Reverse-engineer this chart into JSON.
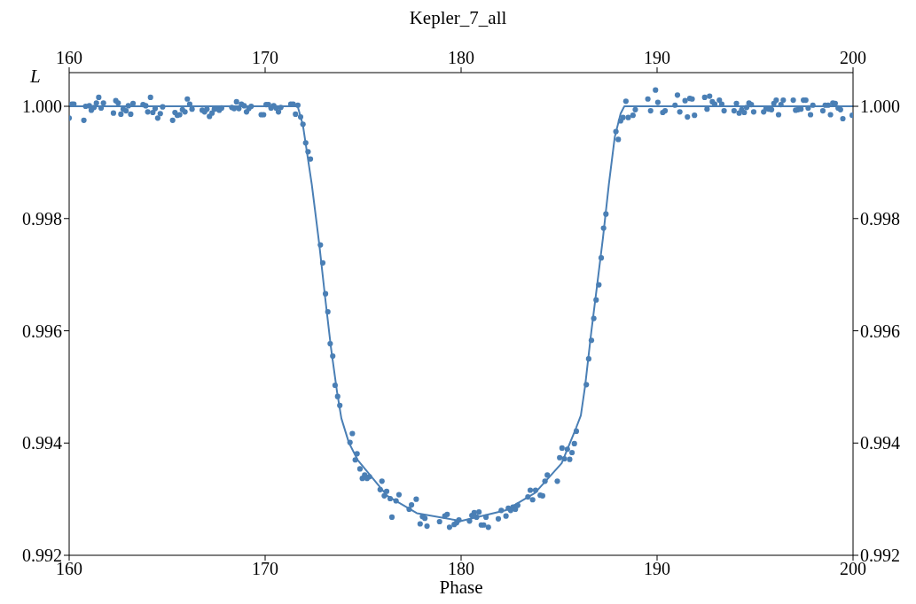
{
  "chart_data": {
    "type": "scatter",
    "title": "Kepler_7_all",
    "xlabel": "Phase",
    "ylabel": "L",
    "xlim": [
      160,
      200
    ],
    "xticks": [
      160,
      170,
      180,
      190,
      200
    ],
    "x2lim": [
      160,
      200
    ],
    "x2ticks": [
      160,
      170,
      180,
      190,
      200
    ],
    "ylim": [
      0.992,
      1.0006
    ],
    "yticks": [
      0.992,
      0.994,
      0.996,
      0.998,
      {
        "value": 1,
        "label": "1.000"
      }
    ],
    "y2lim": [
      0.992,
      1.0006
    ],
    "y2ticks": [
      0.992,
      0.994,
      0.996,
      0.998,
      {
        "value": 1,
        "label": "1.000"
      }
    ],
    "marker": "circle",
    "legend": false,
    "series": [
      {
        "type": "scatter",
        "color": "#4a7fb5",
        "x": [
          160.0,
          160.14,
          160.24,
          160.75,
          160.84,
          161.03,
          161.13,
          161.27,
          161.39,
          161.51,
          161.63,
          161.75,
          162.26,
          162.38,
          162.5,
          162.64,
          162.76,
          162.9,
          163.02,
          163.14,
          163.26,
          163.77,
          163.91,
          164.01,
          164.15,
          164.27,
          164.39,
          164.52,
          164.65,
          164.77,
          165.28,
          165.4,
          165.52,
          165.64,
          165.78,
          165.91,
          166.03,
          166.15,
          166.27,
          166.79,
          166.91,
          167.03,
          167.16,
          167.29,
          167.41,
          167.54,
          167.66,
          167.78,
          168.3,
          168.42,
          168.54,
          168.66,
          168.79,
          168.93,
          169.05,
          169.17,
          169.29,
          169.8,
          169.92,
          170.05,
          170.17,
          170.3,
          170.44,
          170.56,
          170.68,
          170.8,
          171.31,
          171.43,
          171.55,
          171.67,
          171.81,
          171.93,
          172.07,
          172.19,
          172.31,
          172.82,
          172.94,
          173.08,
          173.2,
          173.32,
          173.45,
          173.57,
          173.7,
          173.81,
          174.33,
          174.45,
          174.6,
          174.69,
          174.84,
          174.96,
          175.08,
          175.2,
          175.32,
          175.87,
          175.96,
          176.08,
          176.2,
          176.38,
          176.47,
          176.68,
          176.83,
          177.35,
          177.47,
          177.71,
          177.91,
          178.03,
          178.15,
          178.26,
          178.9,
          179.17,
          179.29,
          179.41,
          179.65,
          179.77,
          179.89,
          180.43,
          180.55,
          180.67,
          180.79,
          180.91,
          181.03,
          181.15,
          181.27,
          181.39,
          181.9,
          182.05,
          182.29,
          182.41,
          182.53,
          182.65,
          182.77,
          182.89,
          183.41,
          183.53,
          183.65,
          183.8,
          184.04,
          184.16,
          184.28,
          184.4,
          184.91,
          185.03,
          185.15,
          185.27,
          185.42,
          185.54,
          185.66,
          185.78,
          185.88,
          186.39,
          186.51,
          186.65,
          186.77,
          186.89,
          187.03,
          187.15,
          187.27,
          187.39,
          187.9,
          188.02,
          188.14,
          188.26,
          188.41,
          188.53,
          188.77,
          188.89,
          189.53,
          189.67,
          189.92,
          190.04,
          190.29,
          190.41,
          190.92,
          191.04,
          191.16,
          191.43,
          191.55,
          191.67,
          191.79,
          191.91,
          192.43,
          192.55,
          192.68,
          192.82,
          192.94,
          193.18,
          193.3,
          193.42,
          193.93,
          194.05,
          194.19,
          194.32,
          194.45,
          194.57,
          194.69,
          194.81,
          194.93,
          195.44,
          195.56,
          195.71,
          195.84,
          195.96,
          196.08,
          196.2,
          196.32,
          196.44,
          196.95,
          197.07,
          197.19,
          197.34,
          197.47,
          197.59,
          197.71,
          197.83,
          197.95,
          198.46,
          198.58,
          198.73,
          198.85,
          198.97,
          199.09,
          199.24,
          199.36,
          199.48,
          199.96
        ],
        "values": [
          0.99979,
          1.00004,
          1.00004,
          0.99975,
          1.0,
          1.00001,
          0.99993,
          0.99998,
          1.00006,
          1.00016,
          0.99997,
          1.00006,
          0.99988,
          1.0001,
          1.00006,
          0.99986,
          0.99995,
          0.99992,
          1.00001,
          0.99986,
          1.00005,
          1.00003,
          1.00001,
          0.9999,
          1.00016,
          0.99989,
          0.99996,
          0.99979,
          0.99987,
          0.99999,
          0.99975,
          0.99989,
          0.99984,
          0.99985,
          0.99994,
          0.9999,
          1.00013,
          1.00004,
          0.99995,
          0.99993,
          0.9999,
          0.99995,
          0.99982,
          0.99988,
          0.99995,
          0.99996,
          0.99993,
          0.99997,
          0.99998,
          0.99996,
          1.00008,
          0.99996,
          1.00004,
          1.00001,
          0.9999,
          0.99996,
          1.0,
          0.99985,
          0.99985,
          1.00003,
          1.00003,
          0.99997,
          1.00001,
          0.99997,
          0.9999,
          0.99998,
          1.00004,
          1.00004,
          0.99986,
          1.00002,
          0.99981,
          0.99968,
          0.99935,
          0.99919,
          0.99906,
          0.99753,
          0.99721,
          0.99666,
          0.99634,
          0.99577,
          0.99555,
          0.99503,
          0.99483,
          0.99467,
          0.99401,
          0.99417,
          0.9937,
          0.99381,
          0.99354,
          0.99337,
          0.99343,
          0.99337,
          0.9934,
          0.99317,
          0.99332,
          0.99306,
          0.99314,
          0.99301,
          0.99268,
          0.99297,
          0.99308,
          0.99282,
          0.9929,
          0.993,
          0.99256,
          0.99269,
          0.99266,
          0.99252,
          0.9926,
          0.9927,
          0.99273,
          0.9925,
          0.99255,
          0.99258,
          0.99263,
          0.99261,
          0.99271,
          0.99276,
          0.99268,
          0.99277,
          0.99254,
          0.99254,
          0.99268,
          0.9925,
          0.99265,
          0.9928,
          0.9927,
          0.99284,
          0.9928,
          0.99286,
          0.99282,
          0.99289,
          0.99304,
          0.99316,
          0.99299,
          0.99316,
          0.99307,
          0.99306,
          0.99332,
          0.99343,
          0.99332,
          0.99374,
          0.99391,
          0.99372,
          0.99389,
          0.99371,
          0.99383,
          0.99399,
          0.99421,
          0.99504,
          0.9955,
          0.99583,
          0.99622,
          0.99655,
          0.99682,
          0.9973,
          0.99783,
          0.99808,
          0.99955,
          0.99941,
          0.99974,
          0.9998,
          1.00009,
          0.9998,
          0.99984,
          0.99994,
          1.00013,
          0.99992,
          1.00029,
          1.00007,
          0.99989,
          0.99992,
          1.00002,
          1.0002,
          0.9999,
          1.0001,
          0.99981,
          1.00014,
          1.00013,
          0.99984,
          1.00016,
          0.99995,
          1.00018,
          1.00008,
          1.00004,
          1.00011,
          1.00004,
          0.99992,
          0.99992,
          1.00005,
          0.99988,
          0.99994,
          0.99989,
          0.99998,
          1.00006,
          1.00003,
          0.9999,
          0.9999,
          0.99996,
          0.99995,
          0.99994,
          1.00005,
          1.00011,
          0.99985,
          1.00003,
          1.00011,
          1.00011,
          0.99993,
          0.99994,
          0.99995,
          1.00011,
          1.00011,
          0.99997,
          0.99985,
          1.00002,
          0.99992,
          1.00002,
          1.00002,
          0.99985,
          1.00006,
          1.00005,
          0.99997,
          0.99994,
          0.99978,
          0.99984
        ]
      },
      {
        "type": "line",
        "color": "#4a7fb5",
        "marker": "none",
        "x": [
          160,
          171.66,
          171.93,
          172.38,
          172.76,
          173.06,
          173.36,
          173.67,
          173.89,
          174.27,
          174.72,
          176.23,
          177.74,
          180.0,
          182.26,
          183.77,
          185.13,
          185.88,
          186.11,
          186.33,
          186.64,
          186.94,
          187.24,
          187.54,
          187.84,
          188.14,
          188.33,
          200
        ],
        "values": [
          1.0,
          1.0,
          0.99966,
          0.99861,
          0.99755,
          0.9966,
          0.9957,
          0.99491,
          0.99444,
          0.99401,
          0.9937,
          0.99306,
          0.99275,
          0.99261,
          0.9928,
          0.99311,
          0.99364,
          0.99428,
          0.99449,
          0.99502,
          0.99597,
          0.99681,
          0.99766,
          0.99861,
          0.99945,
          0.99987,
          1.0,
          1.0
        ]
      }
    ]
  }
}
